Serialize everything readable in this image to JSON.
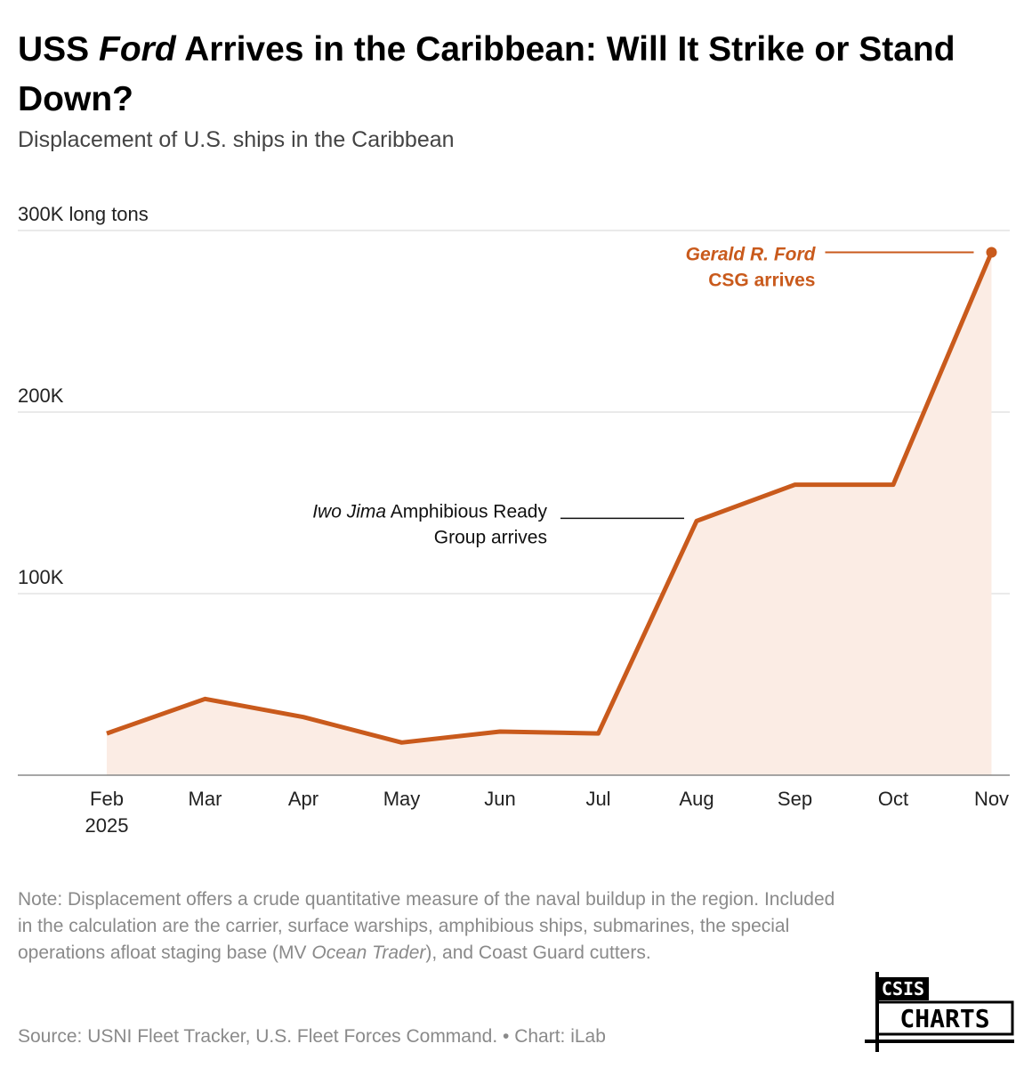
{
  "title": {
    "part1": "USS ",
    "part2_italic": "Ford",
    "part3": " Arrives in the Caribbean: Will It Strike or Stand Down?"
  },
  "subtitle": "Displacement of U.S. ships in the Caribbean",
  "chart_data": {
    "type": "area",
    "x": [
      "Feb",
      "Mar",
      "Apr",
      "May",
      "Jun",
      "Jul",
      "Aug",
      "Sep",
      "Oct",
      "Nov"
    ],
    "x_sublabels": [
      "2025",
      "",
      "",
      "",
      "",
      "",
      "",
      "",
      "",
      ""
    ],
    "values": [
      23000,
      42000,
      32000,
      18000,
      24000,
      23000,
      140000,
      160000,
      160000,
      288000
    ],
    "ylim": [
      0,
      300000
    ],
    "yticks": [
      {
        "value": 100000,
        "label": "100K"
      },
      {
        "value": 200000,
        "label": "200K"
      },
      {
        "value": 300000,
        "label": "300K long tons"
      }
    ],
    "grid": true,
    "line_color": "#c95a1c",
    "fill_color": "#fbece4",
    "annotations": [
      {
        "x": "Aug",
        "line1_italic": "Iwo Jima",
        "line1_rest": " Amphibious Ready",
        "line2": "Group arrives"
      },
      {
        "x": "Nov",
        "line1": "Gerald R. Ford",
        "line2": "CSG arrives",
        "color": "#c95a1c"
      }
    ]
  },
  "note": {
    "part1": "Note: Displacement offers a crude quantitative measure of the naval buildup in the region. Included in the calculation are the carrier, surface warships, amphibious ships, submarines, the special operations afloat staging base (MV ",
    "part2_italic": "Ocean Trader",
    "part3": "), and Coast Guard cutters."
  },
  "source": "Source: USNI Fleet Tracker, U.S. Fleet Forces Command. • Chart: iLab",
  "logo": {
    "line1": "CSIS",
    "line2": "CHARTS"
  }
}
